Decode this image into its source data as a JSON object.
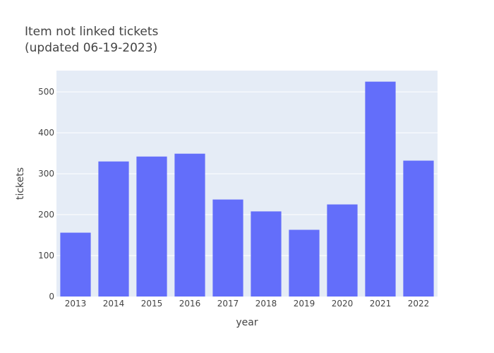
{
  "chart_data": {
    "type": "bar",
    "title_lines": [
      "Item not linked tickets",
      "(updated 06-19-2023)"
    ],
    "xlabel": "year",
    "ylabel": "tickets",
    "categories": [
      "2013",
      "2014",
      "2015",
      "2016",
      "2017",
      "2018",
      "2019",
      "2020",
      "2021",
      "2022"
    ],
    "values": [
      156,
      330,
      342,
      349,
      237,
      208,
      163,
      225,
      525,
      332
    ],
    "ylim": [
      0,
      552
    ],
    "yticks": [
      0,
      100,
      200,
      300,
      400,
      500
    ],
    "grid": true,
    "colors": {
      "bar": "#636efa",
      "plot_background": "#e5ecf6",
      "gridline": "#ffffff",
      "text": "#444444"
    }
  }
}
